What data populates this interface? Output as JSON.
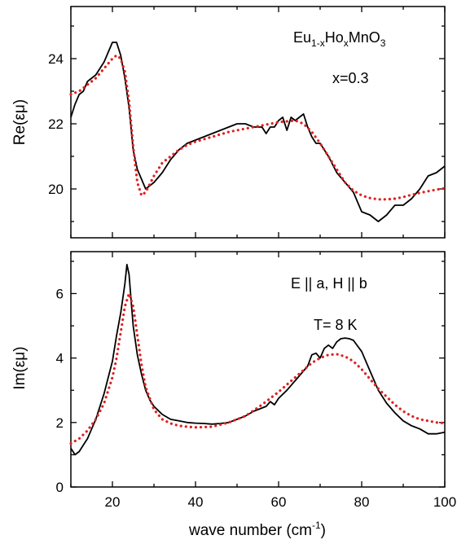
{
  "chart_data": [
    {
      "type": "line",
      "panel": "top",
      "ylabel": "Re(εμ)",
      "xlim": [
        10,
        100
      ],
      "ylim": [
        18.5,
        25.6
      ],
      "yticks": [
        20,
        22,
        24
      ],
      "annotations": {
        "formula": {
          "base1": "Eu",
          "sub1": "1-x",
          "base2": "Ho",
          "sub2": "x",
          "base3": "MnO",
          "sub3": "3"
        },
        "line2": "x=0.3"
      },
      "series": [
        {
          "style": "solid",
          "color": "#000000",
          "x": [
            10,
            11,
            12,
            13,
            14,
            15,
            16,
            17,
            18,
            19,
            20,
            21,
            22,
            23,
            24,
            25,
            26,
            27,
            28,
            29,
            30,
            32,
            34,
            36,
            38,
            40,
            42,
            44,
            46,
            48,
            50,
            52,
            54,
            56,
            57,
            58,
            59,
            60,
            61,
            62,
            63,
            64,
            65,
            66,
            67,
            68,
            69,
            70,
            72,
            74,
            76,
            78,
            80,
            82,
            84,
            86,
            88,
            90,
            92,
            94,
            96,
            98,
            100
          ],
          "y": [
            22.2,
            22.6,
            22.9,
            23.0,
            23.3,
            23.4,
            23.5,
            23.7,
            23.9,
            24.2,
            24.5,
            24.5,
            24.1,
            23.4,
            22.5,
            21.2,
            20.6,
            20.3,
            20.0,
            20.1,
            20.2,
            20.5,
            20.9,
            21.2,
            21.4,
            21.5,
            21.6,
            21.7,
            21.8,
            21.9,
            22.0,
            22.0,
            21.9,
            21.9,
            21.7,
            21.9,
            21.9,
            22.1,
            22.2,
            21.8,
            22.2,
            22.1,
            22.2,
            22.3,
            21.9,
            21.6,
            21.4,
            21.4,
            21.0,
            20.5,
            20.2,
            19.9,
            19.3,
            19.2,
            19.0,
            19.2,
            19.5,
            19.5,
            19.7,
            20.0,
            20.4,
            20.5,
            20.7
          ]
        },
        {
          "style": "dotted",
          "color": "#e02020",
          "x": [
            10,
            12,
            14,
            16,
            18,
            20,
            21,
            22,
            23,
            24,
            25,
            26,
            27,
            28,
            30,
            32,
            34,
            36,
            38,
            40,
            44,
            48,
            52,
            56,
            60,
            64,
            66,
            68,
            70,
            72,
            74,
            76,
            78,
            80,
            82,
            84,
            86,
            88,
            90,
            92,
            94,
            96,
            98,
            100
          ],
          "y": [
            22.9,
            23.0,
            23.2,
            23.4,
            23.7,
            24.0,
            24.1,
            24.0,
            23.6,
            22.7,
            21.3,
            20.2,
            19.8,
            19.9,
            20.4,
            20.8,
            21.0,
            21.2,
            21.35,
            21.45,
            21.6,
            21.75,
            21.85,
            21.95,
            22.05,
            22.1,
            22.0,
            21.75,
            21.4,
            21.0,
            20.6,
            20.2,
            19.95,
            19.8,
            19.72,
            19.68,
            19.68,
            19.7,
            19.75,
            19.82,
            19.88,
            19.93,
            19.98,
            20.02
          ]
        }
      ]
    },
    {
      "type": "line",
      "panel": "bottom",
      "ylabel": "Im(εμ)",
      "xlabel": {
        "text": "wave number (cm",
        "sup": "-1",
        "close": ")"
      },
      "xlim": [
        10,
        100
      ],
      "ylim": [
        0,
        7.3
      ],
      "xticks": [
        20,
        40,
        60,
        80,
        100
      ],
      "yticks": [
        0,
        2,
        4,
        6
      ],
      "annotations": {
        "line1": "E || a, H || b",
        "line2": "T= 8 K"
      },
      "series": [
        {
          "style": "solid",
          "color": "#000000",
          "x": [
            10,
            11,
            12,
            13,
            14,
            15,
            16,
            17,
            18,
            19,
            20,
            21,
            22,
            23,
            23.5,
            24,
            24.5,
            25,
            26,
            27,
            28,
            29,
            30,
            32,
            34,
            36,
            38,
            40,
            42,
            44,
            46,
            48,
            50,
            52,
            54,
            56,
            57,
            58,
            59,
            60,
            62,
            64,
            66,
            67,
            68,
            69,
            70,
            71,
            72,
            73,
            74,
            75,
            76,
            77,
            78,
            80,
            82,
            84,
            86,
            88,
            90,
            92,
            94,
            96,
            98,
            100
          ],
          "y": [
            1.2,
            1.0,
            1.1,
            1.3,
            1.5,
            1.8,
            2.1,
            2.5,
            2.9,
            3.4,
            3.9,
            4.7,
            5.4,
            6.3,
            6.9,
            6.6,
            5.8,
            5.0,
            4.1,
            3.5,
            3.0,
            2.7,
            2.5,
            2.25,
            2.1,
            2.05,
            2.0,
            1.98,
            1.97,
            1.95,
            1.97,
            2.0,
            2.1,
            2.2,
            2.35,
            2.45,
            2.5,
            2.65,
            2.55,
            2.75,
            3.0,
            3.3,
            3.6,
            3.75,
            4.1,
            4.15,
            4.0,
            4.3,
            4.4,
            4.3,
            4.5,
            4.6,
            4.62,
            4.6,
            4.55,
            4.2,
            3.6,
            3.0,
            2.6,
            2.3,
            2.05,
            1.9,
            1.8,
            1.65,
            1.65,
            1.7
          ]
        },
        {
          "style": "dotted",
          "color": "#e02020",
          "x": [
            10,
            12,
            14,
            16,
            18,
            20,
            21,
            22,
            23,
            24,
            25,
            26,
            27,
            28,
            30,
            32,
            34,
            36,
            38,
            40,
            44,
            48,
            52,
            56,
            60,
            64,
            68,
            70,
            72,
            74,
            76,
            78,
            80,
            82,
            84,
            86,
            88,
            90,
            92,
            94,
            96,
            98,
            100
          ],
          "y": [
            1.35,
            1.5,
            1.75,
            2.1,
            2.6,
            3.4,
            4.0,
            4.8,
            5.6,
            6.0,
            5.6,
            4.7,
            3.8,
            3.1,
            2.4,
            2.1,
            1.97,
            1.9,
            1.87,
            1.85,
            1.87,
            2.0,
            2.2,
            2.55,
            2.95,
            3.4,
            3.85,
            4.0,
            4.1,
            4.12,
            4.05,
            3.9,
            3.65,
            3.35,
            3.05,
            2.8,
            2.55,
            2.35,
            2.2,
            2.1,
            2.05,
            2.0,
            1.98
          ]
        }
      ]
    }
  ]
}
